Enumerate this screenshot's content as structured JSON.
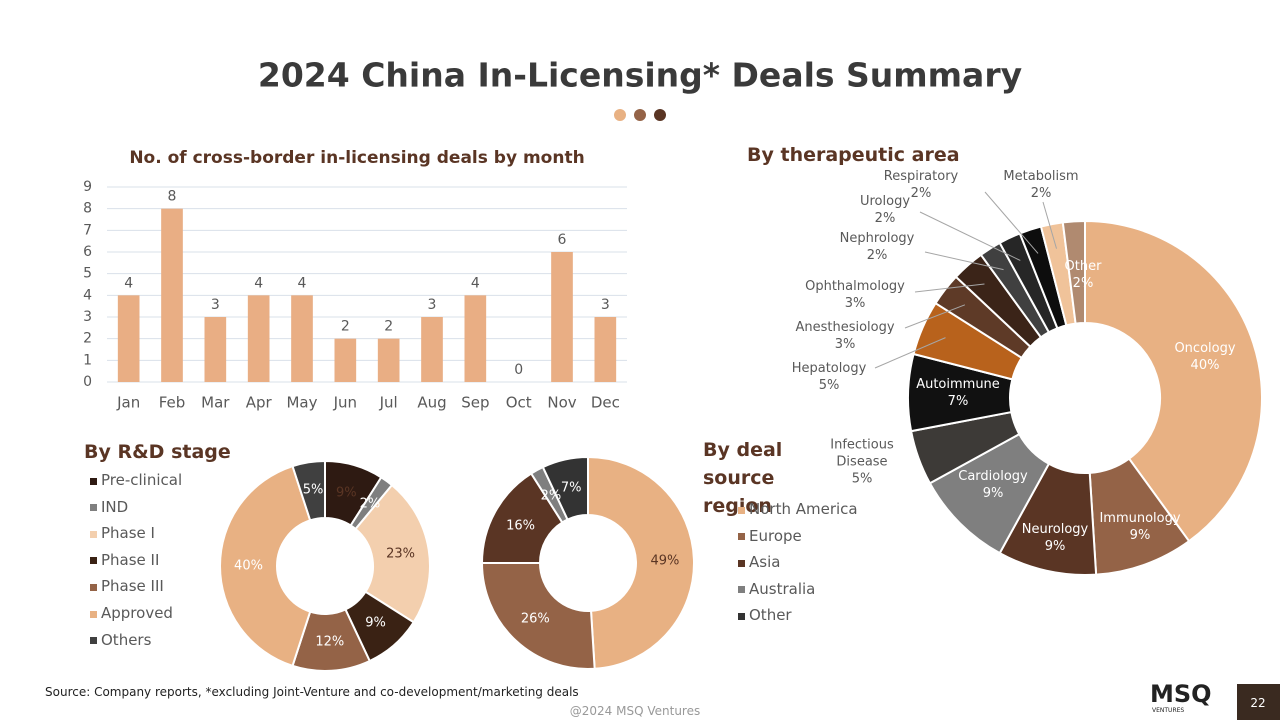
{
  "title": "2024 China In-Licensing* Deals Summary",
  "chart_data": [
    {
      "type": "bar",
      "title": "No. of cross-border in-licensing deals by month",
      "categories": [
        "Jan",
        "Feb",
        "Mar",
        "Apr",
        "May",
        "Jun",
        "Jul",
        "Aug",
        "Sep",
        "Oct",
        "Nov",
        "Dec"
      ],
      "values": [
        4,
        8,
        3,
        4,
        4,
        2,
        2,
        3,
        4,
        0,
        6,
        3
      ],
      "color": "#e9ae84",
      "ylim": [
        0,
        9
      ],
      "yticks": [
        0,
        1,
        2,
        3,
        4,
        5,
        6,
        7,
        8,
        9
      ],
      "grid": true
    },
    {
      "type": "donut",
      "title": "By therapeutic area",
      "categories": [
        "Oncology",
        "Immunology",
        "Neurology",
        "Cardiology",
        "Infectious Disease",
        "Autoimmune",
        "Hepatology",
        "Anesthesiology",
        "Ophthalmology",
        "Nephrology",
        "Urology",
        "Respiratory",
        "Metabolism",
        "Other"
      ],
      "values": [
        40,
        9,
        9,
        9,
        5,
        7,
        5,
        3,
        3,
        2,
        2,
        2,
        2,
        2
      ],
      "value_labels": [
        "40%",
        "9%",
        "9%",
        "9%",
        "5%",
        "7%",
        "5%",
        "3%",
        "3%",
        "2%",
        "2%",
        "2%",
        "2%",
        "2%"
      ],
      "colors": [
        "#e8b183",
        "#946347",
        "#5a3524",
        "#7f7f7f",
        "#3d3a37",
        "#111111",
        "#b8621c",
        "#5e3a27",
        "#3b2418",
        "#404040",
        "#262626",
        "#0d0d0d",
        "#f0c39a",
        "#b08a70"
      ]
    },
    {
      "type": "donut",
      "title": "By R&D stage",
      "legend": "left",
      "categories": [
        "Pre-clinical",
        "IND",
        "Phase I",
        "Phase II",
        "Phase III",
        "Approved",
        "Others"
      ],
      "values": [
        9,
        2,
        23,
        9,
        12,
        40,
        5
      ],
      "value_labels": [
        "9%",
        "2%",
        "23%",
        "9%",
        "12%",
        "40%",
        "5%"
      ],
      "colors": [
        "#2e1a12",
        "#7f7f7f",
        "#f3cfae",
        "#3a2214",
        "#946347",
        "#e8b183",
        "#404040"
      ]
    },
    {
      "type": "donut",
      "title": "By deal source region",
      "legend": "left",
      "categories": [
        "North America",
        "Europe",
        "Asia",
        "Australia",
        "Other"
      ],
      "values": [
        49,
        26,
        16,
        2,
        7
      ],
      "value_labels": [
        "49%",
        "26%",
        "16%",
        "2%",
        "7%"
      ],
      "colors": [
        "#e8b183",
        "#946347",
        "#5a3524",
        "#7f7f7f",
        "#333333"
      ]
    }
  ],
  "footer": {
    "source": "Source: Company reports, *excluding Joint-Venture and co-development/marketing deals",
    "copyright": "@2024 MSQ Ventures",
    "page": 22,
    "logo": "MSQ",
    "logo_sub": "VENTURES"
  }
}
